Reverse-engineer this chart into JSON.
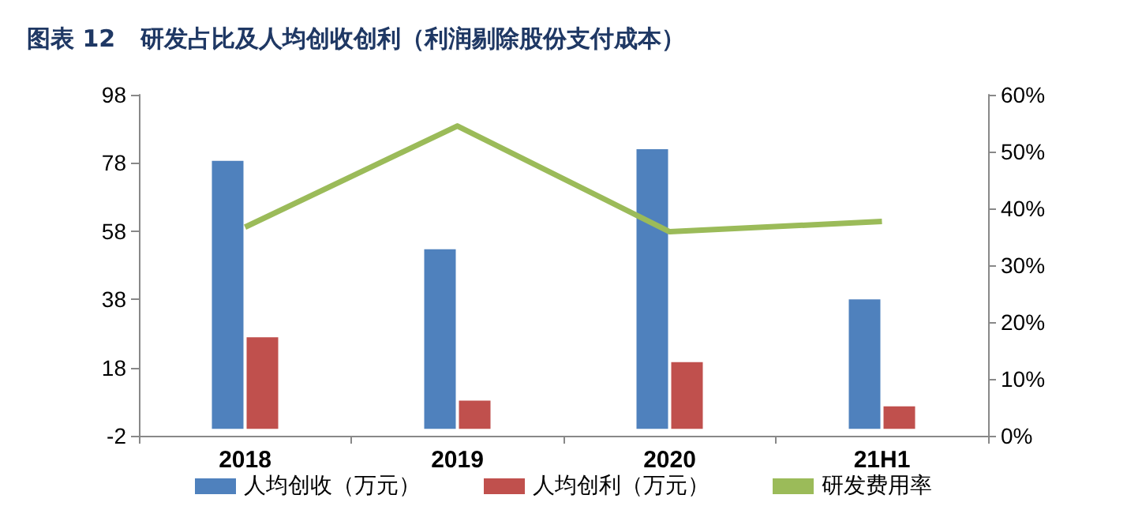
{
  "chart_data": {
    "type": "bar",
    "title": "图表 12   研发占比及人均创收创利（利润剔除股份支付成本）",
    "categories": [
      "2018",
      "2019",
      "2020",
      "21H1"
    ],
    "series": [
      {
        "name": "人均创收（万元）",
        "color": "#4f81bd",
        "values": [
          78.6,
          52.7,
          82,
          38
        ]
      },
      {
        "name": "人均创利（万元）",
        "color": "#c0504d",
        "values": [
          26.9,
          8.3,
          19.6,
          6.6
        ]
      },
      {
        "name": "研发费用率",
        "type": "line",
        "axis": "y2",
        "color": "#9bbb59",
        "values": [
          36.7,
          54.5,
          35.9,
          37.7
        ]
      }
    ],
    "ylim": [
      -2,
      98
    ],
    "yticks": [
      -2,
      18,
      38,
      58,
      78,
      98
    ],
    "y2lim": [
      0,
      60
    ],
    "y2ticks": [
      {
        "value": 0,
        "label": "0%"
      },
      {
        "value": 10,
        "label": "10%"
      },
      {
        "value": 20,
        "label": "20%"
      },
      {
        "value": 30,
        "label": "30%"
      },
      {
        "value": 40,
        "label": "40%"
      },
      {
        "value": 50,
        "label": "50%"
      },
      {
        "value": 60,
        "label": "60%"
      }
    ],
    "grid": false,
    "legend": "bottom",
    "marker": "none"
  }
}
